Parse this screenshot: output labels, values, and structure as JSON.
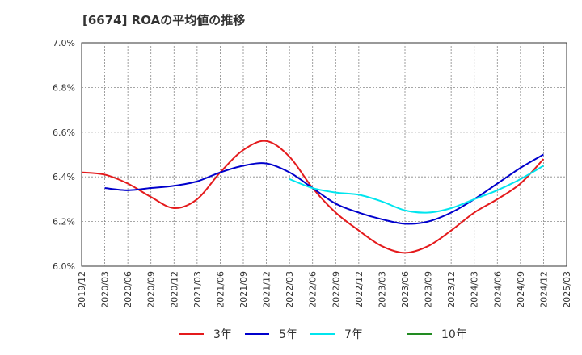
{
  "chart_data": {
    "type": "line",
    "title": "[6674]  ROAの平均値の推移",
    "xlabel": "",
    "ylabel": "",
    "ylim": [
      6.0,
      7.0
    ],
    "y_ticks": [
      "6.0%",
      "6.2%",
      "6.4%",
      "6.6%",
      "6.8%",
      "7.0%"
    ],
    "y_tick_values": [
      6.0,
      6.2,
      6.4,
      6.6,
      6.8,
      7.0
    ],
    "x_ticks": [
      "2019/12",
      "2020/03",
      "2020/06",
      "2020/09",
      "2020/12",
      "2021/03",
      "2021/06",
      "2021/09",
      "2021/12",
      "2022/03",
      "2022/06",
      "2022/09",
      "2022/12",
      "2023/03",
      "2023/06",
      "2023/09",
      "2023/12",
      "2024/03",
      "2024/06",
      "2024/09",
      "2024/12",
      "2025/03"
    ],
    "grid": true,
    "legend_position": "bottom",
    "series": [
      {
        "name": "3年",
        "color": "#e41a1c",
        "values": [
          [
            "2019/12",
            6.42
          ],
          [
            "2020/03",
            6.41
          ],
          [
            "2020/06",
            6.37
          ],
          [
            "2020/09",
            6.31
          ],
          [
            "2020/12",
            6.26
          ],
          [
            "2021/03",
            6.3
          ],
          [
            "2021/06",
            6.42
          ],
          [
            "2021/09",
            6.52
          ],
          [
            "2021/12",
            6.56
          ],
          [
            "2022/03",
            6.49
          ],
          [
            "2022/06",
            6.35
          ],
          [
            "2022/09",
            6.24
          ],
          [
            "2022/12",
            6.16
          ],
          [
            "2023/03",
            6.09
          ],
          [
            "2023/06",
            6.06
          ],
          [
            "2023/09",
            6.09
          ],
          [
            "2023/12",
            6.16
          ],
          [
            "2024/03",
            6.24
          ],
          [
            "2024/06",
            6.3
          ],
          [
            "2024/09",
            6.37
          ],
          [
            "2024/12",
            6.48
          ]
        ]
      },
      {
        "name": "5年",
        "color": "#0000cc",
        "values": [
          [
            "2020/03",
            6.35
          ],
          [
            "2020/06",
            6.34
          ],
          [
            "2020/09",
            6.35
          ],
          [
            "2020/12",
            6.36
          ],
          [
            "2021/03",
            6.38
          ],
          [
            "2021/06",
            6.42
          ],
          [
            "2021/09",
            6.45
          ],
          [
            "2021/12",
            6.46
          ],
          [
            "2022/03",
            6.42
          ],
          [
            "2022/06",
            6.35
          ],
          [
            "2022/09",
            6.28
          ],
          [
            "2022/12",
            6.24
          ],
          [
            "2023/03",
            6.21
          ],
          [
            "2023/06",
            6.19
          ],
          [
            "2023/09",
            6.2
          ],
          [
            "2023/12",
            6.24
          ],
          [
            "2024/03",
            6.3
          ],
          [
            "2024/06",
            6.37
          ],
          [
            "2024/09",
            6.44
          ],
          [
            "2024/12",
            6.5
          ]
        ]
      },
      {
        "name": "7年",
        "color": "#00e5ee",
        "values": [
          [
            "2022/03",
            6.39
          ],
          [
            "2022/06",
            6.35
          ],
          [
            "2022/09",
            6.33
          ],
          [
            "2022/12",
            6.32
          ],
          [
            "2023/03",
            6.29
          ],
          [
            "2023/06",
            6.25
          ],
          [
            "2023/09",
            6.24
          ],
          [
            "2023/12",
            6.26
          ],
          [
            "2024/03",
            6.3
          ],
          [
            "2024/06",
            6.34
          ],
          [
            "2024/09",
            6.39
          ],
          [
            "2024/12",
            6.45
          ]
        ]
      },
      {
        "name": "10年",
        "color": "#228b22",
        "values": []
      }
    ]
  }
}
